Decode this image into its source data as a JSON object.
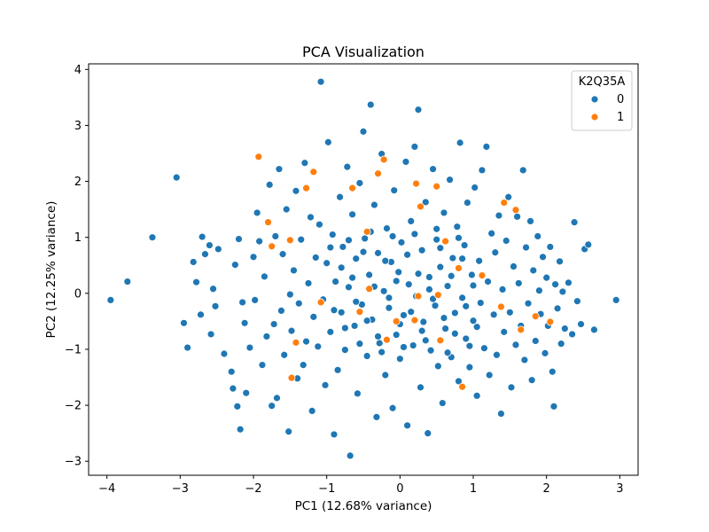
{
  "chart_data": {
    "type": "scatter",
    "title": "PCA Visualization",
    "xlabel": "PC1 (12.68% variance)",
    "ylabel": "PC2 (12.25% variance)",
    "xlim": [
      -4.25,
      3.25
    ],
    "ylim": [
      -3.25,
      4.1
    ],
    "xticks": [
      -4,
      -3,
      -2,
      -1,
      0,
      1,
      2,
      3
    ],
    "yticks": [
      -3,
      -2,
      -1,
      0,
      1,
      2,
      3,
      4
    ],
    "grid": false,
    "legend": {
      "title": "K2Q35A",
      "position": "top-right"
    },
    "series": [
      {
        "name": "0",
        "color": "#1f77b4",
        "points": [
          [
            -3.95,
            -0.12
          ],
          [
            -3.72,
            0.21
          ],
          [
            -3.38,
            1.0
          ],
          [
            -3.05,
            2.07
          ],
          [
            -2.95,
            -0.53
          ],
          [
            -2.9,
            -0.97
          ],
          [
            -2.82,
            0.56
          ],
          [
            -2.78,
            0.2
          ],
          [
            -2.72,
            -0.38
          ],
          [
            -2.7,
            1.01
          ],
          [
            -2.66,
            0.7
          ],
          [
            -2.6,
            0.86
          ],
          [
            -2.58,
            -0.73
          ],
          [
            -2.55,
            0.08
          ],
          [
            -2.52,
            -0.23
          ],
          [
            -2.48,
            0.79
          ],
          [
            -2.4,
            -1.08
          ],
          [
            -2.3,
            -1.4
          ],
          [
            -2.28,
            -1.7
          ],
          [
            -2.25,
            0.51
          ],
          [
            -2.22,
            -2.02
          ],
          [
            -2.2,
            0.97
          ],
          [
            -2.18,
            -2.43
          ],
          [
            -2.15,
            -0.16
          ],
          [
            -2.12,
            -0.53
          ],
          [
            -2.1,
            -1.78
          ],
          [
            -2.05,
            -0.97
          ],
          [
            -2.0,
            0.65
          ],
          [
            -1.98,
            -0.12
          ],
          [
            -1.95,
            1.44
          ],
          [
            -1.92,
            0.93
          ],
          [
            -1.88,
            -1.28
          ],
          [
            -1.85,
            0.3
          ],
          [
            -1.82,
            -0.77
          ],
          [
            -1.78,
            1.94
          ],
          [
            -1.75,
            -2.01
          ],
          [
            -1.72,
            -0.55
          ],
          [
            -1.7,
            1.02
          ],
          [
            -1.68,
            -1.87
          ],
          [
            -1.65,
            2.22
          ],
          [
            -1.62,
            -0.31
          ],
          [
            -1.6,
            0.7
          ],
          [
            -1.58,
            -1.1
          ],
          [
            -1.55,
            1.5
          ],
          [
            -1.52,
            -2.47
          ],
          [
            -1.5,
            -0.02
          ],
          [
            -1.48,
            -0.67
          ],
          [
            -1.45,
            0.41
          ],
          [
            -1.42,
            1.83
          ],
          [
            -1.4,
            -1.52
          ],
          [
            -1.38,
            -0.18
          ],
          [
            -1.35,
            0.96
          ],
          [
            -1.32,
            -1.28
          ],
          [
            -1.3,
            2.33
          ],
          [
            -1.28,
            -0.86
          ],
          [
            -1.25,
            0.18
          ],
          [
            -1.22,
            1.36
          ],
          [
            -1.2,
            -2.1
          ],
          [
            -1.18,
            -0.42
          ],
          [
            -1.15,
            0.64
          ],
          [
            -1.12,
            -0.95
          ],
          [
            -1.1,
            1.23
          ],
          [
            -1.08,
            3.78
          ],
          [
            -1.05,
            -0.11
          ],
          [
            -1.02,
            -1.64
          ],
          [
            -1.0,
            0.54
          ],
          [
            -0.98,
            2.7
          ],
          [
            -0.95,
            -0.69
          ],
          [
            -0.92,
            1.05
          ],
          [
            -0.9,
            -2.52
          ],
          [
            -0.88,
            0.21
          ],
          [
            -0.85,
            -1.37
          ],
          [
            -0.82,
            1.72
          ],
          [
            -0.8,
            -0.34
          ],
          [
            -0.78,
            0.83
          ],
          [
            -0.75,
            -1.01
          ],
          [
            -0.72,
            2.26
          ],
          [
            -0.7,
            0.11
          ],
          [
            -0.68,
            -2.9
          ],
          [
            -0.65,
            1.41
          ],
          [
            -0.62,
            -0.58
          ],
          [
            -0.6,
            0.62
          ],
          [
            -0.58,
            -1.79
          ],
          [
            -0.55,
            1.97
          ],
          [
            -0.52,
            -0.2
          ],
          [
            -0.5,
            2.89
          ],
          [
            -0.48,
            0.98
          ],
          [
            -0.45,
            -1.12
          ],
          [
            -0.42,
            0.33
          ],
          [
            -0.4,
            3.37
          ],
          [
            -0.38,
            -0.47
          ],
          [
            -0.35,
            1.58
          ],
          [
            -0.32,
            -2.21
          ],
          [
            -0.3,
            0.72
          ],
          [
            -0.28,
            -0.89
          ],
          [
            -0.25,
            2.49
          ],
          [
            -0.22,
            0.04
          ],
          [
            -0.2,
            -1.46
          ],
          [
            -0.18,
            1.16
          ],
          [
            -0.15,
            -0.26
          ],
          [
            -0.12,
            0.56
          ],
          [
            -0.1,
            -2.05
          ],
          [
            -0.08,
            1.84
          ],
          [
            -0.05,
            -0.74
          ],
          [
            -0.02,
            0.38
          ],
          [
            0.0,
            -1.17
          ],
          [
            0.02,
            0.91
          ],
          [
            0.05,
            -0.39
          ],
          [
            0.08,
            2.35
          ],
          [
            0.1,
            -2.36
          ],
          [
            0.12,
            0.16
          ],
          [
            0.15,
            1.29
          ],
          [
            0.18,
            -0.93
          ],
          [
            0.2,
            2.62
          ],
          [
            0.22,
            -0.05
          ],
          [
            0.25,
            3.28
          ],
          [
            0.28,
            -1.68
          ],
          [
            0.3,
            0.77
          ],
          [
            0.32,
            -0.51
          ],
          [
            0.35,
            1.63
          ],
          [
            0.38,
            -2.5
          ],
          [
            0.4,
            0.29
          ],
          [
            0.42,
            -1.02
          ],
          [
            0.45,
            2.22
          ],
          [
            0.48,
            -0.22
          ],
          [
            0.5,
            0.96
          ],
          [
            0.52,
            -1.3
          ],
          [
            0.55,
            0.47
          ],
          [
            0.58,
            -1.96
          ],
          [
            0.6,
            1.44
          ],
          [
            0.62,
            -0.63
          ],
          [
            0.65,
            0.13
          ],
          [
            0.68,
            2.03
          ],
          [
            0.7,
            -1.14
          ],
          [
            0.72,
            0.63
          ],
          [
            0.75,
            -0.35
          ],
          [
            0.78,
            1.19
          ],
          [
            0.8,
            -1.57
          ],
          [
            0.82,
            2.69
          ],
          [
            0.85,
            -0.08
          ],
          [
            0.88,
            0.86
          ],
          [
            0.9,
            -0.81
          ],
          [
            0.92,
            1.62
          ],
          [
            0.95,
            -1.32
          ],
          [
            0.98,
            0.33
          ],
          [
            1.0,
            -0.49
          ],
          [
            1.02,
            1.89
          ],
          [
            1.05,
            -1.83
          ],
          [
            1.08,
            0.58
          ],
          [
            1.1,
            -0.17
          ],
          [
            1.12,
            2.2
          ],
          [
            1.15,
            -0.98
          ],
          [
            1.18,
            2.62
          ],
          [
            1.2,
            0.21
          ],
          [
            1.22,
            -1.46
          ],
          [
            1.25,
            1.07
          ],
          [
            1.28,
            -0.38
          ],
          [
            1.3,
            0.73
          ],
          [
            1.32,
            -1.1
          ],
          [
            1.35,
            1.39
          ],
          [
            1.38,
            -2.15
          ],
          [
            1.4,
            0.07
          ],
          [
            1.42,
            -0.69
          ],
          [
            1.45,
            0.94
          ],
          [
            1.48,
            1.72
          ],
          [
            1.5,
            -0.34
          ],
          [
            1.52,
            -1.68
          ],
          [
            1.55,
            0.48
          ],
          [
            1.58,
            -0.92
          ],
          [
            1.6,
            1.37
          ],
          [
            1.62,
            0.18
          ],
          [
            1.65,
            -0.58
          ],
          [
            1.68,
            2.2
          ],
          [
            1.7,
            -1.19
          ],
          [
            1.72,
            0.82
          ],
          [
            1.75,
            -0.18
          ],
          [
            1.78,
            1.29
          ],
          [
            1.8,
            -1.55
          ],
          [
            1.82,
            0.41
          ],
          [
            1.85,
            -0.85
          ],
          [
            1.88,
            1.02
          ],
          [
            1.9,
            0.05
          ],
          [
            1.92,
            -0.37
          ],
          [
            1.95,
            0.65
          ],
          [
            1.98,
            -1.07
          ],
          [
            2.0,
            0.28
          ],
          [
            2.02,
            -0.58
          ],
          [
            2.05,
            0.83
          ],
          [
            2.08,
            -1.4
          ],
          [
            2.1,
            -2.02
          ],
          [
            2.12,
            0.16
          ],
          [
            2.15,
            -0.27
          ],
          [
            2.18,
            0.57
          ],
          [
            2.2,
            -0.9
          ],
          [
            2.22,
            0.03
          ],
          [
            2.25,
            -0.63
          ],
          [
            2.3,
            0.19
          ],
          [
            2.35,
            -0.73
          ],
          [
            2.38,
            1.27
          ],
          [
            2.42,
            -0.14
          ],
          [
            2.47,
            -0.55
          ],
          [
            2.52,
            0.79
          ],
          [
            2.57,
            0.87
          ],
          [
            2.65,
            -0.65
          ],
          [
            2.95,
            -0.12
          ],
          [
            -0.95,
            0.82
          ],
          [
            -0.8,
            0.46
          ],
          [
            -0.65,
            0.28
          ],
          [
            -0.5,
            0.74
          ],
          [
            -0.35,
            0.12
          ],
          [
            -0.2,
            0.58
          ],
          [
            -0.05,
            0.22
          ],
          [
            0.1,
            0.69
          ],
          [
            0.25,
            0.35
          ],
          [
            0.4,
            0.07
          ],
          [
            0.55,
            0.81
          ],
          [
            0.7,
            0.31
          ],
          [
            0.85,
            0.62
          ],
          [
            1.0,
            0.14
          ],
          [
            -0.9,
            -0.3
          ],
          [
            -0.75,
            -0.62
          ],
          [
            -0.6,
            -0.15
          ],
          [
            -0.45,
            -0.49
          ],
          [
            -0.3,
            -0.77
          ],
          [
            -0.15,
            -0.08
          ],
          [
            0.0,
            -0.55
          ],
          [
            0.15,
            -0.33
          ],
          [
            0.3,
            -0.67
          ],
          [
            0.45,
            -0.1
          ],
          [
            0.6,
            -0.44
          ],
          [
            0.75,
            -0.72
          ],
          [
            0.9,
            -0.23
          ],
          [
            1.05,
            -0.6
          ],
          [
            -0.7,
            0.95
          ],
          [
            -0.4,
            1.1
          ],
          [
            -0.1,
            1.02
          ],
          [
            0.2,
            1.06
          ],
          [
            0.5,
            1.15
          ],
          [
            0.8,
            0.99
          ],
          [
            -0.55,
            -0.9
          ],
          [
            -0.25,
            -1.05
          ],
          [
            0.05,
            -0.96
          ],
          [
            0.35,
            -0.84
          ],
          [
            0.65,
            -1.06
          ],
          [
            0.95,
            -0.94
          ]
        ]
      },
      {
        "name": "1",
        "color": "#ff7f0e",
        "points": [
          [
            -1.93,
            2.44
          ],
          [
            -1.8,
            1.27
          ],
          [
            -1.75,
            0.84
          ],
          [
            -1.5,
            0.95
          ],
          [
            -1.48,
            -1.51
          ],
          [
            -1.42,
            -0.88
          ],
          [
            -1.28,
            1.88
          ],
          [
            -1.18,
            2.17
          ],
          [
            -1.08,
            -0.16
          ],
          [
            -0.65,
            1.88
          ],
          [
            -0.55,
            -0.33
          ],
          [
            -0.45,
            1.1
          ],
          [
            -0.42,
            0.08
          ],
          [
            -0.3,
            2.14
          ],
          [
            -0.22,
            2.39
          ],
          [
            -0.18,
            -0.83
          ],
          [
            -0.05,
            -0.5
          ],
          [
            0.2,
            -0.48
          ],
          [
            0.22,
            1.96
          ],
          [
            0.25,
            -0.05
          ],
          [
            0.28,
            1.55
          ],
          [
            0.5,
            1.91
          ],
          [
            0.52,
            -0.03
          ],
          [
            0.55,
            -0.84
          ],
          [
            0.62,
            0.93
          ],
          [
            0.8,
            0.45
          ],
          [
            0.85,
            -1.67
          ],
          [
            1.12,
            0.32
          ],
          [
            1.38,
            -0.24
          ],
          [
            1.42,
            1.62
          ],
          [
            1.58,
            1.49
          ],
          [
            1.65,
            -0.65
          ],
          [
            1.85,
            -0.41
          ],
          [
            2.05,
            -0.51
          ]
        ]
      }
    ]
  }
}
